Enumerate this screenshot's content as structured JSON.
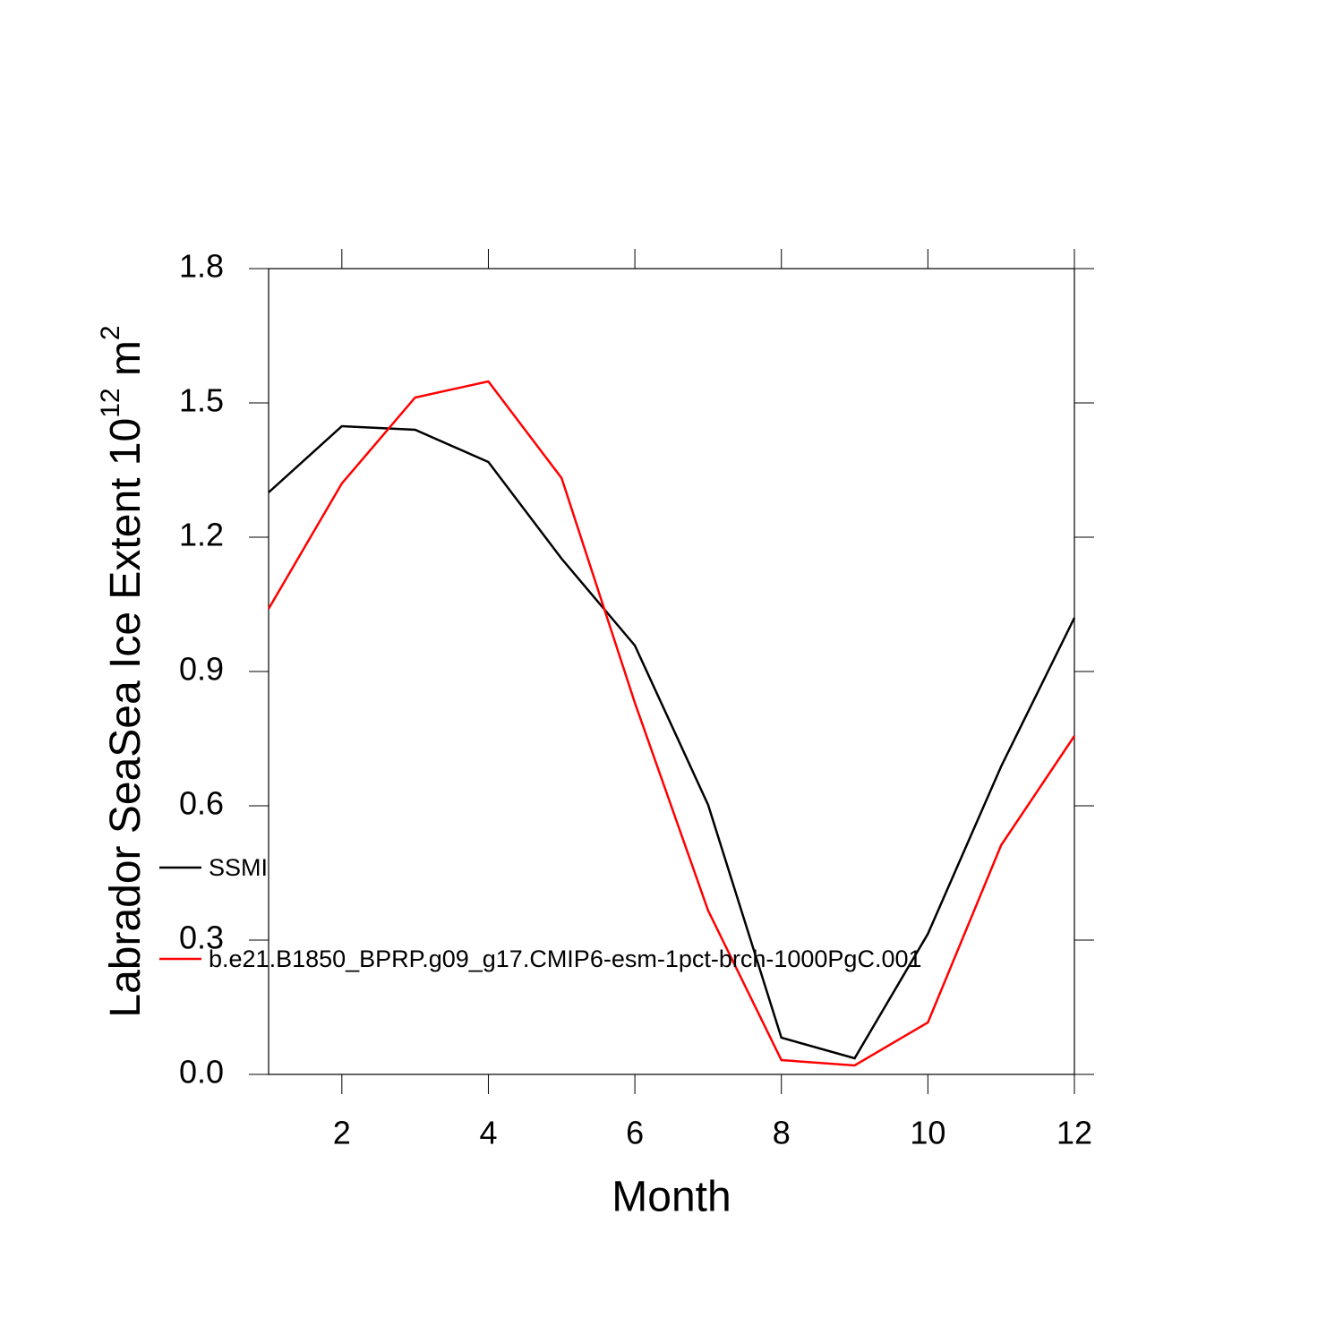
{
  "chart_data": {
    "type": "line",
    "xlabel": "Month",
    "ylabel": [
      "Labrador SeaSea Ice Extent 10",
      "12",
      " m",
      "2"
    ],
    "x": [
      1,
      2,
      3,
      4,
      5,
      6,
      7,
      8,
      9,
      10,
      11,
      12
    ],
    "series": [
      {
        "name": "SSMI",
        "color": "#000000",
        "values": [
          1.3,
          1.448,
          1.44,
          1.368,
          1.152,
          0.958,
          0.602,
          0.082,
          0.036,
          0.314,
          0.688,
          1.02
        ]
      },
      {
        "name": "b.e21.B1850_BPRP.g09_g17.CMIP6-esm-1pct-brch-1000PgC.001",
        "color": "#ff0000",
        "values": [
          1.04,
          1.32,
          1.512,
          1.548,
          1.332,
          0.83,
          0.366,
          0.032,
          0.02,
          0.116,
          0.512,
          0.756
        ]
      }
    ],
    "xlim": [
      1,
      12
    ],
    "xticks": [
      2,
      4,
      6,
      8,
      10,
      12
    ],
    "ylim": [
      0,
      1.8
    ],
    "yticks": [
      {
        "value": 0,
        "label": "0.0"
      },
      0.3,
      0.6,
      0.9,
      1.2,
      1.5,
      1.8
    ]
  }
}
